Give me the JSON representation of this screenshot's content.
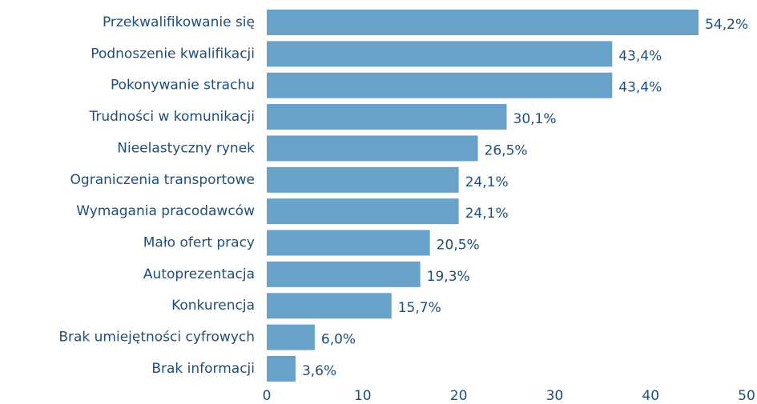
{
  "chart_data": {
    "type": "barh",
    "categories": [
      "Przekwalifikowanie się",
      "Podnoszenie kwalifikacji",
      "Pokonywanie strachu",
      "Trudności w komunikacji",
      "Nieelastyczny rynek",
      "Ograniczenia transportowe",
      "Wymagania pracodawców",
      "Mało ofert pracy",
      "Autoprezentacja",
      "Konkurencja",
      "Brak umiejętności cyfrowych",
      "Brak informacji"
    ],
    "values": [
      45,
      36,
      36,
      25,
      22,
      20,
      20,
      17,
      16,
      13,
      5,
      3
    ],
    "value_labels": [
      "54,2%",
      "43,4%",
      "43,4%",
      "30,1%",
      "26,5%",
      "24,1%",
      "24,1%",
      "20,5%",
      "19,3%",
      "15,7%",
      "6,0%",
      "3,6%"
    ],
    "color": "#68a2c8",
    "xlim": [
      0,
      50
    ],
    "xticks": [
      0,
      10,
      20,
      30,
      40,
      50
    ],
    "grid": false
  }
}
